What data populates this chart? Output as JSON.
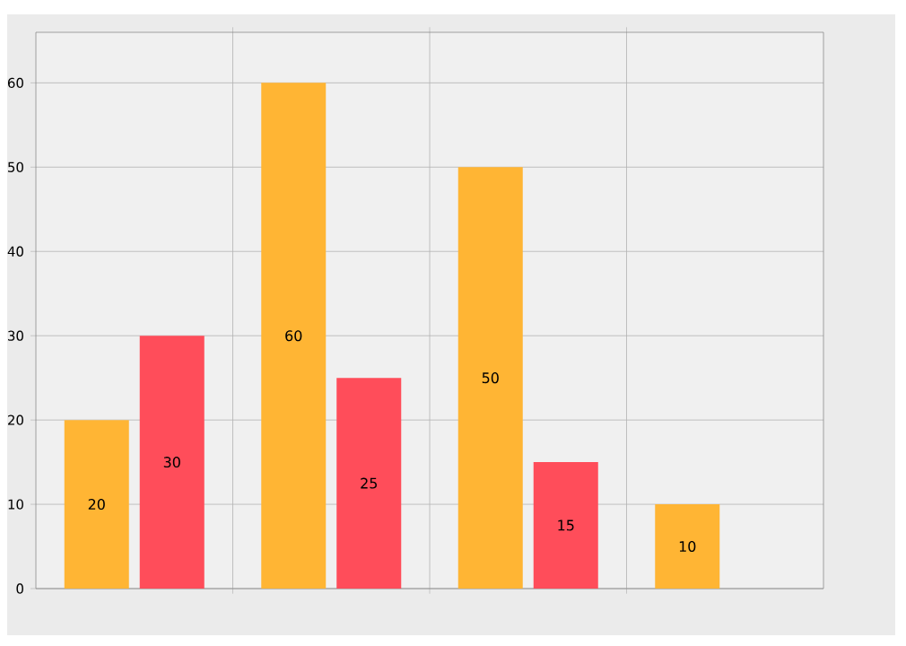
{
  "chart_data": {
    "type": "bar",
    "categories": [
      null,
      null,
      null,
      null
    ],
    "series": [
      {
        "color": "#ffb534",
        "values": [
          20,
          60,
          50,
          10
        ]
      },
      {
        "color": "#ff4d5a",
        "values": [
          30,
          25,
          15,
          null
        ]
      }
    ],
    "ylim": [
      0,
      66
    ],
    "yticks": [
      0,
      10,
      20,
      30,
      40,
      50,
      60
    ],
    "grid": true,
    "data_labels": true,
    "tick_labels": "y"
  }
}
